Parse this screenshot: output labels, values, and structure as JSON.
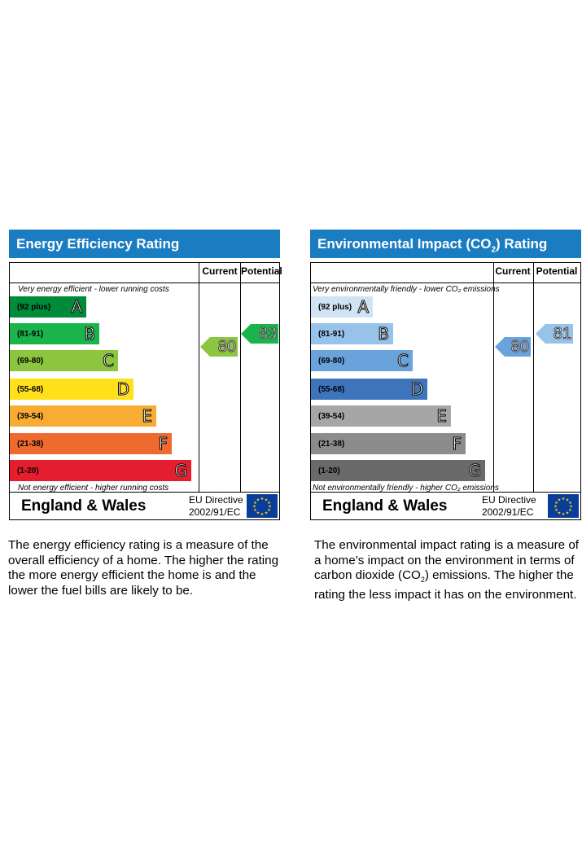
{
  "energy": {
    "title": "Energy Efficiency Rating",
    "col_current": "Current",
    "col_potential": "Potential",
    "top_note": "Very energy efficient - lower running costs",
    "bottom_note": "Not energy efficient - higher running costs",
    "bands": [
      {
        "range": "(92 plus)",
        "letter": "A",
        "color": "#008b3a"
      },
      {
        "range": "(81-91)",
        "letter": "B",
        "color": "#19b44b"
      },
      {
        "range": "(69-80)",
        "letter": "C",
        "color": "#8cc63e"
      },
      {
        "range": "(55-68)",
        "letter": "D",
        "color": "#ffe01b"
      },
      {
        "range": "(39-54)",
        "letter": "E",
        "color": "#f9ac34"
      },
      {
        "range": "(21-38)",
        "letter": "F",
        "color": "#ee6a2f"
      },
      {
        "range": "(1-20)",
        "letter": "G",
        "color": "#e41e2e"
      }
    ],
    "current": {
      "value": "80",
      "color": "#8cc63e"
    },
    "potential": {
      "value": "83",
      "color": "#19b44b"
    },
    "region": "England & Wales",
    "directive_line1": "EU Directive",
    "directive_line2": "2002/91/EC",
    "description": "The energy efficiency rating is a measure of the overall efficiency of a home. The higher the rating the more energy efficient the home is and the lower the fuel bills are likely to be."
  },
  "environment": {
    "title_pre": "Environmental Impact (CO",
    "title_sub": "2",
    "title_post": ") Rating",
    "col_current": "Current",
    "col_potential": "Potential",
    "top_note": "Very environmentally friendly - lower  CO₂ emissions",
    "bottom_note": "Not environmentally friendly - higher  CO₂ emissions",
    "bands": [
      {
        "range": "(92 plus)",
        "letter": "A",
        "color": "#cfe3f4"
      },
      {
        "range": "(81-91)",
        "letter": "B",
        "color": "#97c2ea"
      },
      {
        "range": "(69-80)",
        "letter": "C",
        "color": "#6aa2dc"
      },
      {
        "range": "(55-68)",
        "letter": "D",
        "color": "#3e74bb"
      },
      {
        "range": "(39-54)",
        "letter": "E",
        "color": "#a6a6a6"
      },
      {
        "range": "(21-38)",
        "letter": "F",
        "color": "#8c8c8c"
      },
      {
        "range": "(1-20)",
        "letter": "G",
        "color": "#6a6a6a"
      }
    ],
    "current": {
      "value": "80",
      "color": "#6aa2dc"
    },
    "potential": {
      "value": "81",
      "color": "#97c2ea"
    },
    "region": "England & Wales",
    "directive_line1": "EU Directive",
    "directive_line2": "2002/91/EC",
    "description_pre": "The environmental impact rating is a measure of a home’s impact on the environment in terms of carbon dioxide (CO",
    "description_sub": "2",
    "description_post": ") emissions. The higher the rating the less impact it has on the environment."
  }
}
